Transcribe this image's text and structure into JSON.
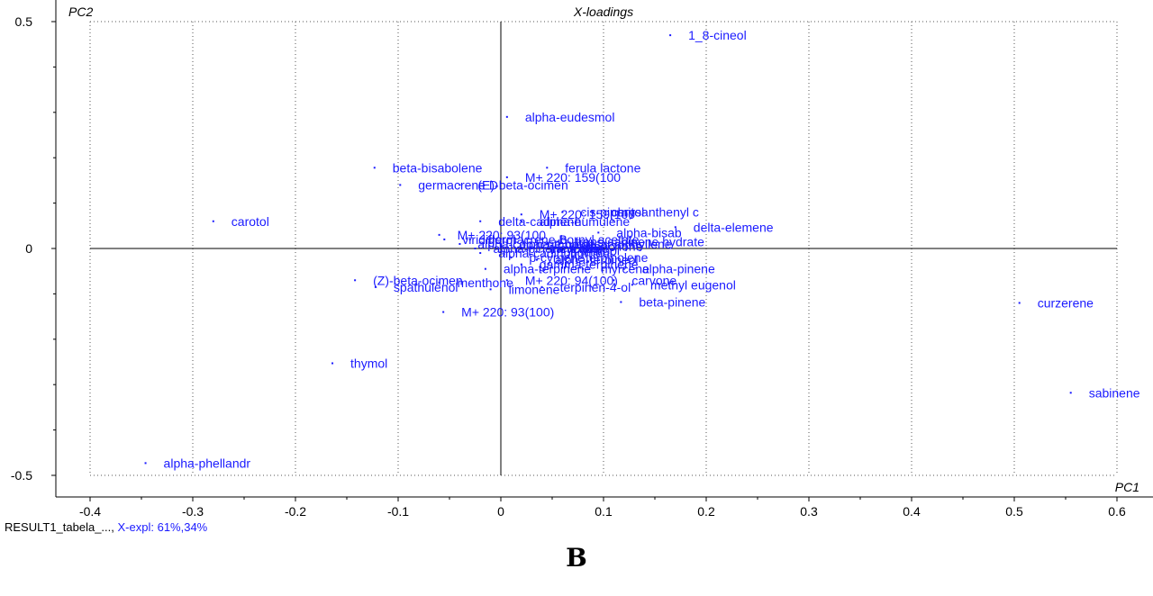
{
  "chart_data": {
    "type": "scatter",
    "title": "X-loadings",
    "xlabel": "PC1",
    "ylabel": "PC2",
    "xlim": [
      -0.4,
      0.6
    ],
    "ylim": [
      -0.5,
      0.5
    ],
    "x_ticks": [
      "-0.4",
      "-0.3",
      "-0.2",
      "-0.1",
      "0",
      "0.1",
      "0.2",
      "0.3",
      "0.4",
      "0.5",
      "0.6"
    ],
    "x_tick_values": [
      -0.4,
      -0.3,
      -0.2,
      -0.1,
      0,
      0.1,
      0.2,
      0.3,
      0.4,
      0.5,
      0.6
    ],
    "y_ticks": [
      "0.5",
      "0",
      "-0.5"
    ],
    "y_tick_values": [
      0.5,
      0,
      -0.5
    ],
    "grid": true,
    "point_color": "#1a1aff",
    "points": [
      {
        "x": 0.165,
        "y": 0.47,
        "label": "1_8-cineol"
      },
      {
        "x": 0.006,
        "y": 0.29,
        "label": "alpha-eudesmol"
      },
      {
        "x": -0.123,
        "y": 0.178,
        "label": "beta-bisabolene"
      },
      {
        "x": 0.045,
        "y": 0.178,
        "label": "ferula lactone"
      },
      {
        "x": 0.006,
        "y": 0.157,
        "label": "M+ 220: 159(100"
      },
      {
        "x": -0.098,
        "y": 0.14,
        "label": "germacrene D"
      },
      {
        "x": -0.04,
        "y": 0.14,
        "label": "(E)-beta-ocimen"
      },
      {
        "x": -0.28,
        "y": 0.06,
        "label": "carotol"
      },
      {
        "x": 0.02,
        "y": 0.075,
        "label": "M+ 220: 159(100"
      },
      {
        "x": 0.06,
        "y": 0.08,
        "label": "cis-piperitol"
      },
      {
        "x": 0.09,
        "y": 0.08,
        "label": "chrysanthenyl c"
      },
      {
        "x": -0.02,
        "y": 0.06,
        "label": "delta-cadinene"
      },
      {
        "x": 0.02,
        "y": 0.06,
        "label": "alpha-humulene"
      },
      {
        "x": 0.17,
        "y": 0.047,
        "label": "delta-elemene"
      },
      {
        "x": 0.095,
        "y": 0.035,
        "label": "alpha-bisab"
      },
      {
        "x": -0.06,
        "y": 0.03,
        "label": "M+ 220: 93(100"
      },
      {
        "x": -0.055,
        "y": 0.02,
        "label": "viridiflorol"
      },
      {
        "x": -0.04,
        "y": 0.01,
        "label": "alpha-copaene"
      },
      {
        "x": -0.025,
        "y": 0.0,
        "label": "alpha-pinene oxide"
      },
      {
        "x": 0.03,
        "y": 0.0,
        "label": "camphene"
      },
      {
        "x": 0.06,
        "y": -0.005,
        "label": "linalool"
      },
      {
        "x": 0.01,
        "y": -0.02,
        "label": "p-cymene"
      },
      {
        "x": 0.02,
        "y": -0.035,
        "label": "gamma-terpinene"
      },
      {
        "x": -0.015,
        "y": -0.045,
        "label": "alpha-terpinene"
      },
      {
        "x": 0.08,
        "y": -0.045,
        "label": "myrcene"
      },
      {
        "x": 0.12,
        "y": -0.045,
        "label": "alpha-pinene"
      },
      {
        "x": -0.142,
        "y": -0.07,
        "label": "(Z)-beta-ocimen"
      },
      {
        "x": -0.122,
        "y": -0.085,
        "label": "spathulenol"
      },
      {
        "x": -0.06,
        "y": -0.075,
        "label": "menthone"
      },
      {
        "x": 0.006,
        "y": -0.07,
        "label": "M+ 220: 94(100)"
      },
      {
        "x": 0.11,
        "y": -0.07,
        "label": "carvone"
      },
      {
        "x": 0.128,
        "y": -0.08,
        "label": "methyl eugenol"
      },
      {
        "x": -0.01,
        "y": -0.09,
        "label": "limonene"
      },
      {
        "x": 0.04,
        "y": -0.085,
        "label": "terpinen-4-ol"
      },
      {
        "x": 0.117,
        "y": -0.118,
        "label": "beta-pinene"
      },
      {
        "x": -0.056,
        "y": -0.14,
        "label": "M+ 220: 93(100)"
      },
      {
        "x": 0.505,
        "y": -0.12,
        "label": "curzerene"
      },
      {
        "x": -0.164,
        "y": -0.253,
        "label": "thymol"
      },
      {
        "x": 0.555,
        "y": -0.318,
        "label": "sabinene"
      },
      {
        "x": -0.346,
        "y": -0.473,
        "label": "alpha-phellandr"
      },
      {
        "x": 0.03,
        "y": 0.0,
        "label": "tricyclene"
      },
      {
        "x": 0.045,
        "y": 0.01,
        "label": "beta-caryophyllene"
      },
      {
        "x": 0.05,
        "y": -0.01,
        "label": "borneol"
      },
      {
        "x": 0.04,
        "y": 0.02,
        "label": "bornyl acetate"
      },
      {
        "x": -0.03,
        "y": 0.02,
        "label": "germacrene B"
      },
      {
        "x": -0.02,
        "y": -0.01,
        "label": "alpha-cadinol"
      },
      {
        "x": 0.035,
        "y": -0.025,
        "label": "alpha-terpineol"
      },
      {
        "x": 0.055,
        "y": 0.015,
        "label": "trans-sabinene hydrate"
      },
      {
        "x": 0.065,
        "y": -0.02,
        "label": "terpinolene"
      },
      {
        "x": 0.07,
        "y": 0.005,
        "label": "fenchone"
      },
      {
        "x": 0.0,
        "y": 0.01,
        "label": "alpha-thujene"
      }
    ]
  },
  "footer": {
    "result_name": "RESULT1_tabela_...,",
    "explained_variance": "X-expl: 61%,34%"
  },
  "panel_letter": "B"
}
